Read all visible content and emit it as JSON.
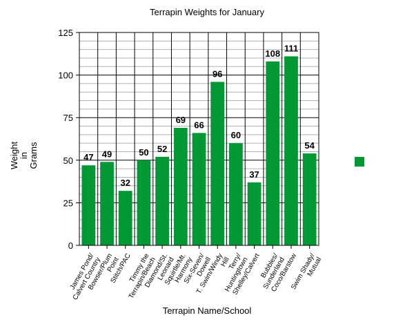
{
  "chart_data": {
    "type": "bar",
    "title": "Terrapin Weights for January",
    "xlabel": "Terrapin Name/School",
    "ylabel": "Weight in Grams",
    "ylabel_lines": [
      "Weight",
      "in",
      "Grams"
    ],
    "categories": [
      "James Pond/ Calvert Country",
      "Bowser/Plum Point",
      "Stitch/PAC",
      "Timmy the Terrapin/Beach",
      "Diamond/St. Leonard",
      "Squirtle/Mt. Harmony",
      "Six-Seven/ Dowell",
      "T. Swim/Windy Hill",
      "Terry/ Huntingtown",
      "Shelley/Calvert",
      "Bubbles/ Sunderland",
      "Coco/Barstow",
      "Swim Shady/ Mutual"
    ],
    "category_lines": [
      [
        "James Pond/",
        "Calvert Country"
      ],
      [
        "Bowser/Plum",
        "Point"
      ],
      [
        "Stitch/PAC"
      ],
      [
        "Timmy the",
        "Terrapin/Beach"
      ],
      [
        "Diamond/St.",
        "Leonard"
      ],
      [
        "Squirtle/Mt.",
        "Harmony"
      ],
      [
        "Six-Seven/",
        "Dowell"
      ],
      [
        "T. Swim/Windy",
        "Hill"
      ],
      [
        "Terry/",
        "Huntingtown"
      ],
      [
        "Shelley/Calvert"
      ],
      [
        "Bubbles/",
        "Sunderland"
      ],
      [
        "Coco/Barstow"
      ],
      [
        "Swim Shady/",
        "Mutual"
      ]
    ],
    "values": [
      47,
      49,
      32,
      50,
      52,
      69,
      66,
      96,
      60,
      37,
      108,
      111,
      54
    ],
    "data_labels": true,
    "ylim": [
      0,
      125
    ],
    "yticks": [
      0,
      25,
      50,
      75,
      100,
      125
    ],
    "minor_grid_step": 5,
    "grid": true,
    "legend": {
      "position": "right",
      "entries": [
        {
          "label": "",
          "color": "#009933"
        }
      ]
    },
    "bar_color": "#009933"
  }
}
